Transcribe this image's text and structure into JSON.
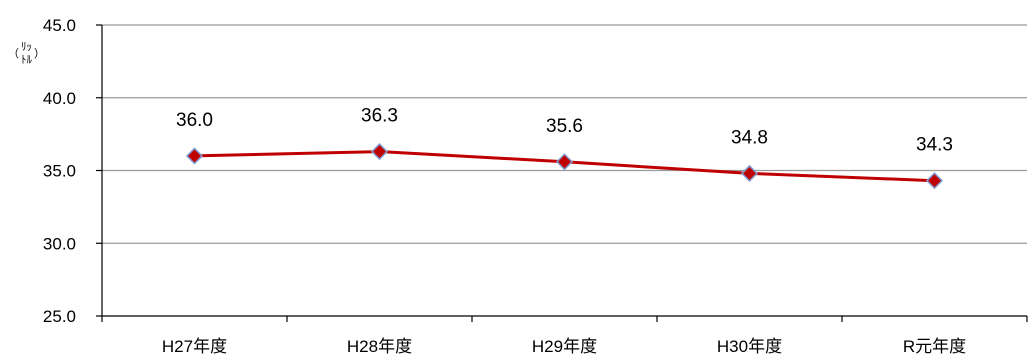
{
  "chart_data": {
    "type": "line",
    "title": "",
    "xlabel": "",
    "ylabel": "（ﾘｯﾄﾙ）",
    "ylabel_parts": [
      "（",
      "ﾘｯ",
      "ﾄﾙ",
      "）"
    ],
    "categories": [
      "H27年度",
      "H28年度",
      "H29年度",
      "H30年度",
      "R元年度"
    ],
    "series": [
      {
        "values": [
          36.0,
          36.3,
          35.6,
          34.8,
          34.3
        ],
        "labels": [
          "36.0",
          "36.3",
          "35.6",
          "34.8",
          "34.3"
        ]
      }
    ],
    "ylim": [
      25.0,
      45.0
    ],
    "yticks": [
      25.0,
      30.0,
      35.0,
      40.0,
      45.0
    ],
    "ytick_labels": [
      "25.0",
      "30.0",
      "35.0",
      "40.0",
      "45.0"
    ],
    "grid": true,
    "legend": "none",
    "colors": {
      "line": "#C00000",
      "marker_fill": "#C00000",
      "marker_edge": "#7F9AD2",
      "grid": "#9A9A9A",
      "axis": "#808080"
    }
  }
}
